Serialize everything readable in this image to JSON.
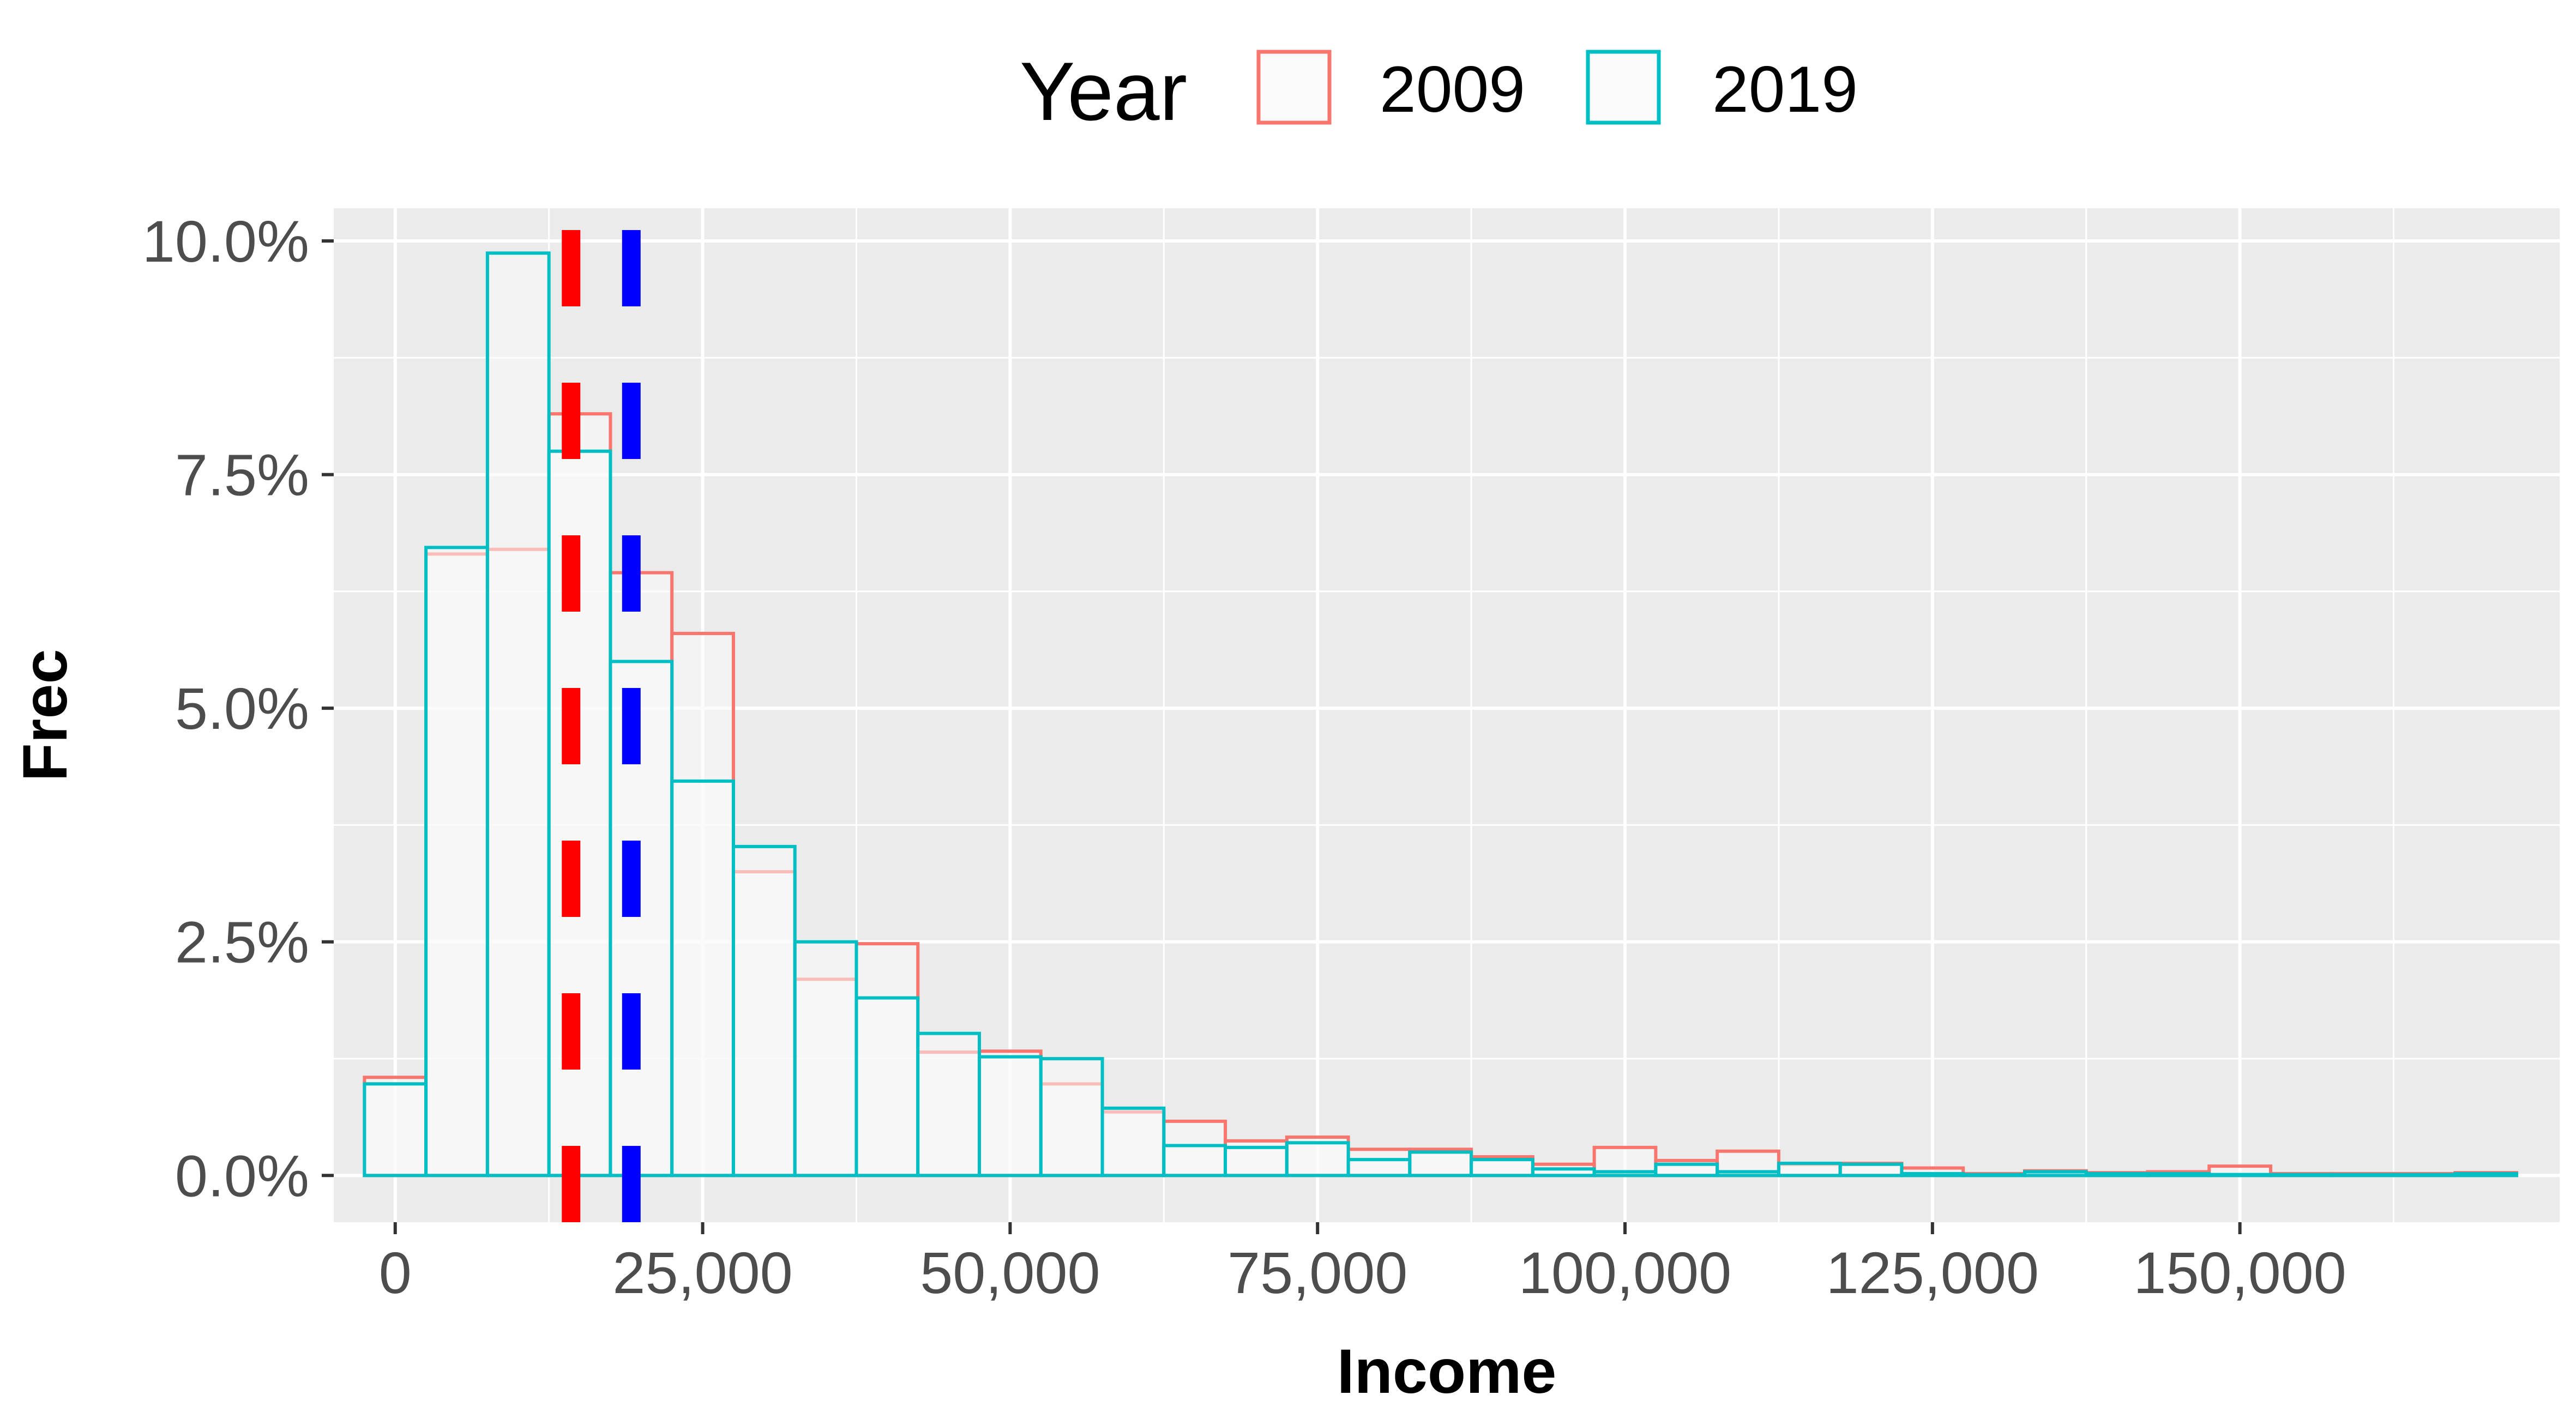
{
  "chart_data": {
    "type": "histogram",
    "title": "",
    "xlabel": "Income",
    "ylabel": "Frec",
    "legend": {
      "title": "Year",
      "placement": "top",
      "entries": [
        "2009",
        "2019"
      ]
    },
    "xlim": [
      -5000,
      176000
    ],
    "ylim": [
      -0.5,
      10.35
    ],
    "x_ticks": [
      0,
      25000,
      50000,
      75000,
      100000,
      125000,
      150000
    ],
    "x_tick_labels": [
      "0",
      "25,000",
      "50,000",
      "75,000",
      "100,000",
      "125,000",
      "150,000"
    ],
    "y_ticks": [
      0,
      2.5,
      5,
      7.5,
      10
    ],
    "y_tick_labels": [
      "0.0%",
      "2.5%",
      "5.0%",
      "7.5%",
      "10.0%"
    ],
    "bin_width": 5000,
    "bin_starts": [
      -2500,
      2500,
      7500,
      12500,
      17500,
      22500,
      27500,
      32500,
      37500,
      42500,
      47500,
      52500,
      57500,
      62500,
      67500,
      72500,
      77500,
      82500,
      87500,
      92500,
      97500,
      102500,
      107500,
      112500,
      117500,
      122500,
      127500,
      132500,
      137500,
      142500,
      147500,
      152500,
      157500,
      162500,
      167500
    ],
    "series": [
      {
        "name": "2009",
        "color": "#F8766D",
        "values": [
          1.05,
          6.65,
          6.7,
          8.15,
          6.45,
          5.8,
          3.25,
          2.1,
          2.48,
          1.32,
          1.33,
          0.98,
          0.68,
          0.58,
          0.37,
          0.41,
          0.28,
          0.28,
          0.2,
          0.12,
          0.3,
          0.16,
          0.26,
          0.12,
          0.13,
          0.08,
          0.02,
          0.05,
          0.03,
          0.04,
          0.1,
          0.02,
          0.02,
          0.02,
          0.03
        ]
      },
      {
        "name": "2019",
        "color": "#00BFC4",
        "values": [
          0.98,
          6.72,
          9.87,
          7.75,
          5.5,
          4.22,
          3.52,
          2.5,
          1.9,
          1.52,
          1.27,
          1.25,
          0.72,
          0.32,
          0.3,
          0.35,
          0.17,
          0.25,
          0.17,
          0.07,
          0.04,
          0.12,
          0.04,
          0.13,
          0.12,
          0.02,
          0.01,
          0.04,
          0.02,
          0.02,
          0.01,
          0.01,
          0.01,
          0.01,
          0.02
        ]
      }
    ],
    "reference_lines": [
      {
        "x": 14300,
        "color": "#FF0000",
        "style": "dashed"
      },
      {
        "x": 19200,
        "color": "#0000FF",
        "style": "dashed"
      }
    ],
    "grid": true,
    "background": "#EBEBEB",
    "bar_fill": "#FAFAFA"
  }
}
